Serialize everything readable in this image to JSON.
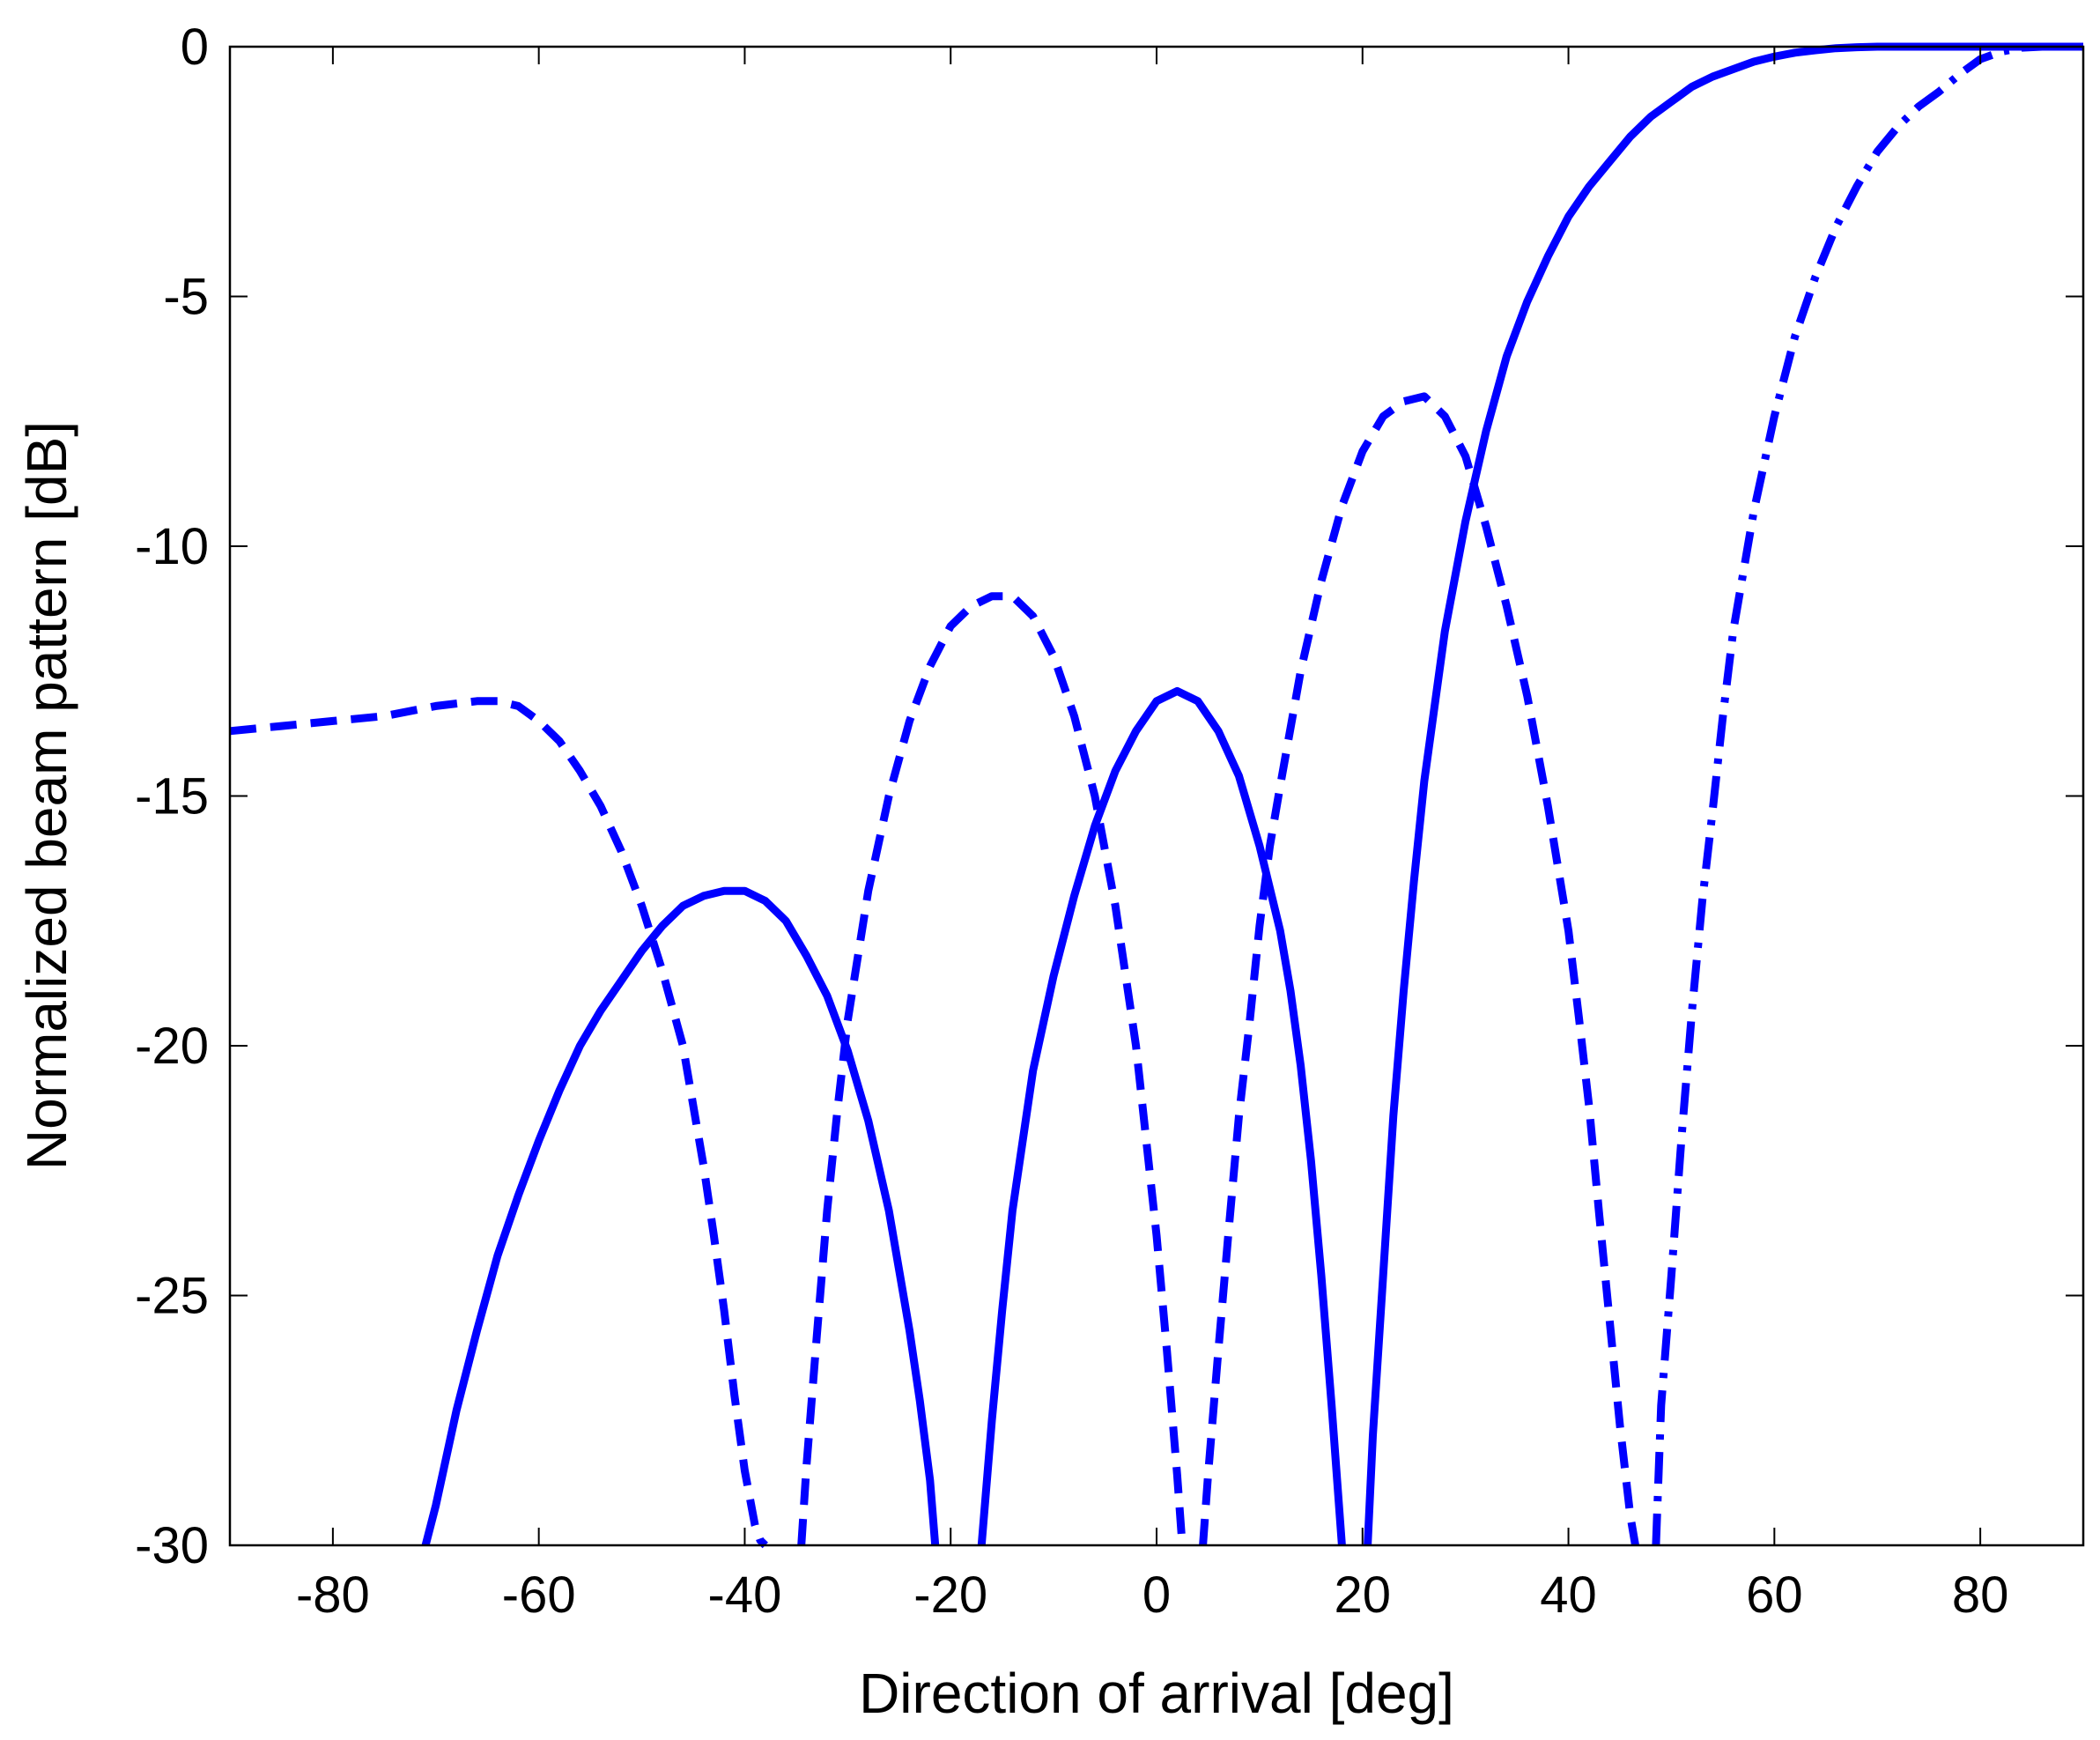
{
  "chart_data": {
    "type": "line",
    "title": "",
    "xlabel": "Direction of arrival [deg]",
    "ylabel": "Normalized beam pattern [dB]",
    "xlim": [
      -90,
      90
    ],
    "ylim": [
      -30,
      0
    ],
    "xticks": [
      "-80",
      "-60",
      "-40",
      "-20",
      "0",
      "20",
      "40",
      "60",
      "80"
    ],
    "yticks": [
      "0",
      "-5",
      "-10",
      "-15",
      "-20",
      "-25",
      "-30"
    ],
    "grid": false,
    "legend": "none",
    "colors": {
      "series": "#0000ff",
      "axis": "#000000",
      "background": "#ffffff"
    },
    "series": [
      {
        "style": "solid",
        "x": [
          -71,
          -70,
          -68,
          -66,
          -64,
          -62,
          -60,
          -58,
          -56,
          -54,
          -52,
          -50,
          -48,
          -46,
          -44,
          -42,
          -40,
          -38,
          -36,
          -34,
          -32,
          -30,
          -28,
          -26,
          -24,
          -23,
          -22,
          -21.5
        ],
        "y": [
          -30,
          -29.2,
          -27.3,
          -25.7,
          -24.2,
          -23,
          -21.9,
          -20.9,
          -20,
          -19.3,
          -18.7,
          -18.1,
          -17.6,
          -17.2,
          -17,
          -16.9,
          -16.9,
          -17.1,
          -17.5,
          -18.2,
          -19,
          -20.1,
          -21.5,
          -23.3,
          -25.7,
          -27.1,
          -28.7,
          -30
        ]
      },
      {
        "style": "solid",
        "x": [
          -17,
          -16,
          -15,
          -14,
          -12,
          -10,
          -8,
          -6,
          -4,
          -2,
          0,
          2,
          4,
          6,
          8,
          10,
          12,
          13,
          14,
          15,
          16,
          17,
          18
        ],
        "y": [
          -30,
          -27.5,
          -25.3,
          -23.3,
          -20.5,
          -18.6,
          -17,
          -15.6,
          -14.5,
          -13.7,
          -13.1,
          -12.9,
          -13.1,
          -13.7,
          -14.6,
          -16,
          -17.7,
          -18.9,
          -20.4,
          -22.3,
          -24.6,
          -27.2,
          -30
        ]
      },
      {
        "style": "solid",
        "x": [
          20.5,
          21,
          22,
          23,
          24,
          25,
          26,
          28,
          30,
          32,
          34,
          36,
          38,
          40,
          42,
          44,
          46,
          48,
          50,
          52,
          54,
          56,
          58,
          60,
          62,
          64,
          66,
          68,
          70,
          75,
          80,
          85,
          90
        ],
        "y": [
          -30,
          -27.8,
          -24.6,
          -21.4,
          -18.9,
          -16.7,
          -14.7,
          -11.7,
          -9.5,
          -7.7,
          -6.2,
          -5.1,
          -4.2,
          -3.4,
          -2.8,
          -2.3,
          -1.8,
          -1.4,
          -1.1,
          -0.8,
          -0.6,
          -0.45,
          -0.3,
          -0.2,
          -0.12,
          -0.07,
          -0.03,
          -0.01,
          0,
          0,
          0,
          0,
          0
        ]
      },
      {
        "style": "dashed",
        "x": [
          -90,
          -85,
          -80,
          -75,
          -70,
          -66,
          -64,
          -62,
          -60,
          -58,
          -56,
          -54,
          -52,
          -50,
          -48,
          -46,
          -44,
          -43,
          -42,
          -41,
          -40,
          -39,
          -38.5,
          -38
        ],
        "y": [
          -13.7,
          -13.6,
          -13.5,
          -13.4,
          -13.2,
          -13.1,
          -13.1,
          -13.2,
          -13.5,
          -13.9,
          -14.5,
          -15.2,
          -16.1,
          -17.2,
          -18.5,
          -20,
          -22.4,
          -23.8,
          -25.3,
          -27,
          -28.5,
          -29.6,
          -29.9,
          -30
        ]
      },
      {
        "style": "dashed",
        "x": [
          -34.5,
          -34,
          -33,
          -32,
          -31,
          -30,
          -28,
          -26,
          -24,
          -22,
          -20,
          -18,
          -16,
          -14,
          -12,
          -10,
          -8,
          -6,
          -4,
          -2,
          0,
          1,
          2,
          2.5
        ],
        "y": [
          -30,
          -28.4,
          -25.8,
          -23.3,
          -21.3,
          -19.5,
          -16.9,
          -15,
          -13.5,
          -12.4,
          -11.6,
          -11.2,
          -11,
          -11,
          -11.4,
          -12.2,
          -13.4,
          -15,
          -17.2,
          -20,
          -23.8,
          -26.1,
          -28.6,
          -30
        ]
      },
      {
        "style": "dashed",
        "x": [
          4.5,
          5,
          6,
          7,
          8,
          9,
          10,
          11,
          12,
          14,
          16,
          18,
          20,
          22,
          24,
          26,
          28,
          30,
          32,
          34,
          36,
          38,
          40,
          41,
          42,
          43,
          44,
          45,
          46,
          46.5
        ],
        "y": [
          -30,
          -28.6,
          -26.1,
          -23.7,
          -21.4,
          -19.6,
          -17.6,
          -16,
          -14.8,
          -12.5,
          -10.7,
          -9.2,
          -8.1,
          -7.4,
          -7.1,
          -7,
          -7.4,
          -8.2,
          -9.6,
          -11.2,
          -13,
          -15.2,
          -17.7,
          -19.4,
          -21.2,
          -23.4,
          -25.5,
          -27.6,
          -29.4,
          -30
        ]
      },
      {
        "style": "dashdot",
        "x": [
          48.5,
          49,
          50,
          51,
          52,
          53,
          54,
          55,
          56,
          58,
          60,
          62,
          64,
          66,
          68,
          70,
          72,
          74,
          76,
          78,
          80,
          82,
          84,
          86,
          88,
          90
        ],
        "y": [
          -30,
          -27.2,
          -24.6,
          -21.8,
          -19.3,
          -17.1,
          -15.3,
          -13.4,
          -11.7,
          -9.3,
          -7.4,
          -5.8,
          -4.6,
          -3.6,
          -2.8,
          -2.1,
          -1.6,
          -1.2,
          -0.9,
          -0.55,
          -0.25,
          -0.1,
          -0.02,
          0,
          0,
          0
        ]
      }
    ]
  }
}
